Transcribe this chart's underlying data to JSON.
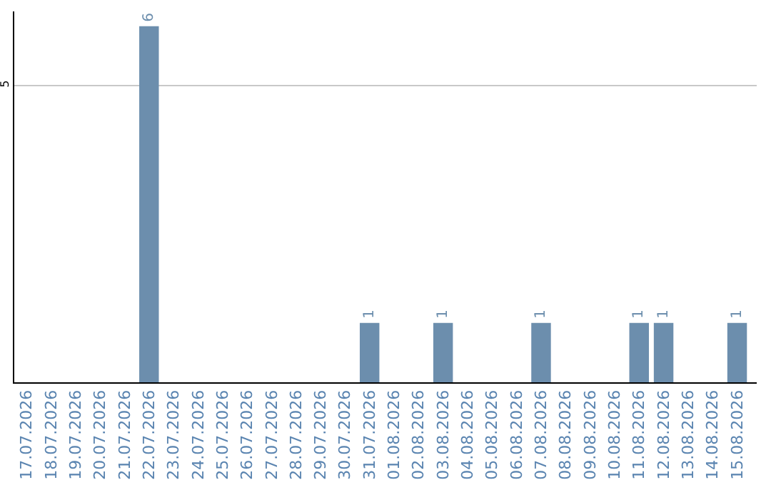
{
  "chart_data": {
    "type": "bar",
    "categories": [
      "17.07.2026",
      "18.07.2026",
      "19.07.2026",
      "20.07.2026",
      "21.07.2026",
      "22.07.2026",
      "23.07.2026",
      "24.07.2026",
      "25.07.2026",
      "26.07.2026",
      "27.07.2026",
      "28.07.2026",
      "29.07.2026",
      "30.07.2026",
      "31.07.2026",
      "01.08.2026",
      "02.08.2026",
      "03.08.2026",
      "04.08.2026",
      "05.08.2026",
      "06.08.2026",
      "07.08.2026",
      "08.08.2026",
      "09.08.2026",
      "10.08.2026",
      "11.08.2026",
      "12.08.2026",
      "13.08.2026",
      "14.08.2026",
      "15.08.2026"
    ],
    "values": [
      0,
      0,
      0,
      0,
      0,
      6,
      0,
      0,
      0,
      0,
      0,
      0,
      0,
      0,
      1,
      0,
      0,
      1,
      0,
      0,
      0,
      1,
      0,
      0,
      0,
      1,
      1,
      0,
      0,
      1
    ],
    "value_labels": [
      null,
      null,
      null,
      null,
      null,
      "6",
      null,
      null,
      null,
      null,
      null,
      null,
      null,
      null,
      "1",
      null,
      null,
      "1",
      null,
      null,
      null,
      "1",
      null,
      null,
      null,
      "1",
      "1",
      null,
      null,
      "1"
    ],
    "color": "#6c8ead",
    "ylim": [
      0,
      6.25
    ],
    "yticks": [
      5
    ],
    "grid": "y",
    "legend": false
  }
}
